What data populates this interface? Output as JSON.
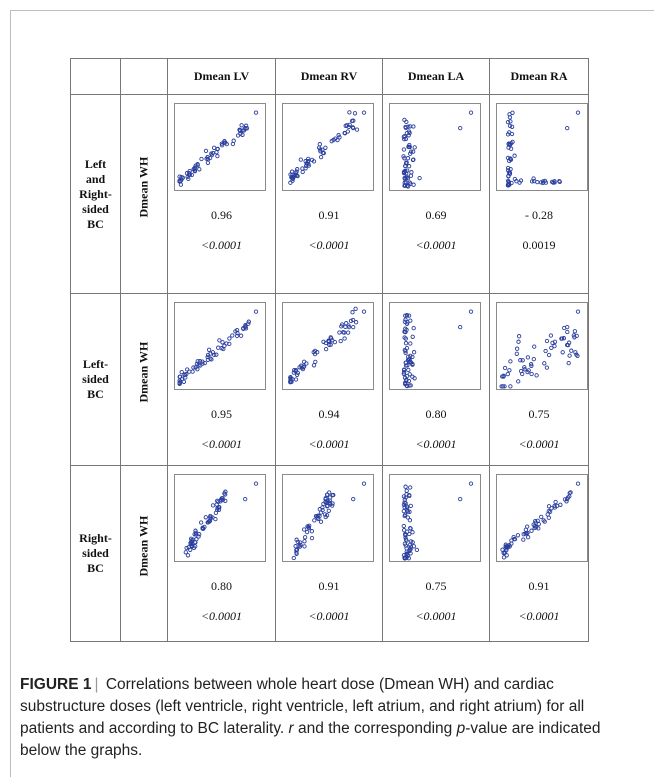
{
  "table": {
    "columns": [
      "Dmean LV",
      "Dmean RV",
      "Dmean LA",
      "Dmean RA"
    ],
    "rows": [
      {
        "group": "Left\nand\nRight-\nsided\nBC",
        "metric": "Dmean WH",
        "cells": [
          {
            "r": "0.96",
            "p": "<0.0001",
            "p_italic": true
          },
          {
            "r": "0.91",
            "p": "<0.0001",
            "p_italic": true
          },
          {
            "r": "0.69",
            "p": "<0.0001",
            "p_italic": true
          },
          {
            "r": "- 0.28",
            "p": "0.0019",
            "p_italic": false
          }
        ]
      },
      {
        "group": "Left-\nsided\nBC",
        "metric": "Dmean WH",
        "cells": [
          {
            "r": "0.95",
            "p": "<0.0001",
            "p_italic": true
          },
          {
            "r": "0.94",
            "p": "<0.0001",
            "p_italic": true
          },
          {
            "r": "0.80",
            "p": "<0.0001",
            "p_italic": true
          },
          {
            "r": "0.75",
            "p": "<0.0001",
            "p_italic": true
          }
        ]
      },
      {
        "group": "Right-\nsided\nBC",
        "metric": "Dmean WH",
        "cells": [
          {
            "r": "0.80",
            "p": "<0.0001",
            "p_italic": true
          },
          {
            "r": "0.91",
            "p": "<0.0001",
            "p_italic": true
          },
          {
            "r": "0.75",
            "p": "<0.0001",
            "p_italic": true
          },
          {
            "r": "0.91",
            "p": "<0.0001",
            "p_italic": true
          }
        ]
      }
    ]
  },
  "caption": {
    "label": "FIGURE 1",
    "separator": "|",
    "text_a": "Correlations between whole heart dose (Dmean WH) and cardiac substructure doses (left ventricle, right ventricle, left atrium, and right atrium) for all patients and according to BC laterality.",
    "r_symbol": "r",
    "text_b": "and the corresponding",
    "p_symbol": "p",
    "text_c": "-value are indicated below the graphs."
  },
  "chart_data": {
    "type": "scatter",
    "point_color": "#2b3f9e",
    "panel_shapes": [
      [
        "linear-tight",
        "linear-fan",
        "vertical-cluster",
        "L-shape"
      ],
      [
        "linear-tight",
        "linear-fan",
        "vertical-cluster",
        "diffuse-positive"
      ],
      [
        "linear-steep",
        "linear-steep",
        "vertical-cluster",
        "linear-tight"
      ]
    ]
  }
}
